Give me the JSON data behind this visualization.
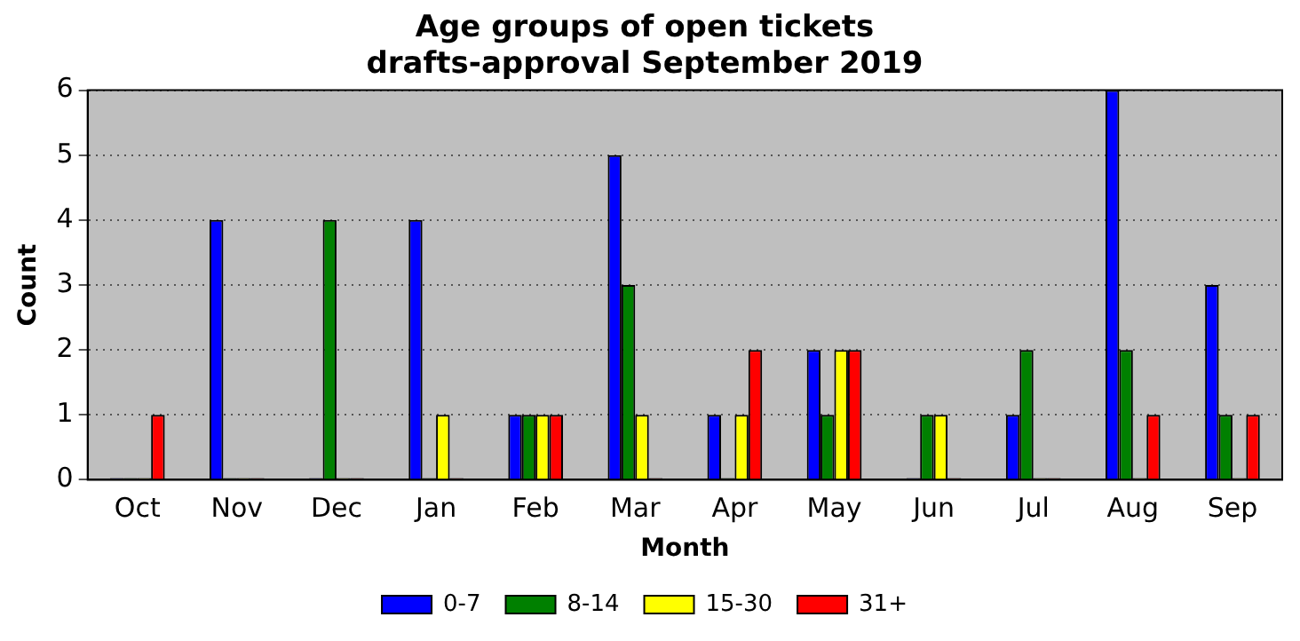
{
  "chart_data": {
    "type": "bar",
    "title": "Age groups of open tickets\ndrafts-approval September 2019",
    "xlabel": "Month",
    "ylabel": "Count",
    "categories": [
      "Oct",
      "Nov",
      "Dec",
      "Jan",
      "Feb",
      "Mar",
      "Apr",
      "May",
      "Jun",
      "Jul",
      "Aug",
      "Sep"
    ],
    "series": [
      {
        "name": "0-7",
        "color": "#0000ff",
        "values": [
          0,
          4,
          0,
          4,
          1,
          5,
          1,
          2,
          0,
          1,
          6,
          3
        ]
      },
      {
        "name": "8-14",
        "color": "#008000",
        "values": [
          0,
          0,
          4,
          0,
          1,
          3,
          0,
          1,
          1,
          2,
          2,
          1
        ]
      },
      {
        "name": "15-30",
        "color": "#ffff00",
        "values": [
          0,
          0,
          0,
          1,
          1,
          1,
          1,
          2,
          1,
          0,
          0,
          0
        ]
      },
      {
        "name": "31+",
        "color": "#ff0000",
        "values": [
          1,
          0,
          0,
          0,
          1,
          0,
          2,
          2,
          0,
          0,
          1,
          1
        ]
      }
    ],
    "ylim": [
      0,
      6
    ],
    "yticks": [
      0,
      1,
      2,
      3,
      4,
      5,
      6
    ],
    "grid": "y",
    "line_style": "dotted",
    "legend": "bottom"
  }
}
